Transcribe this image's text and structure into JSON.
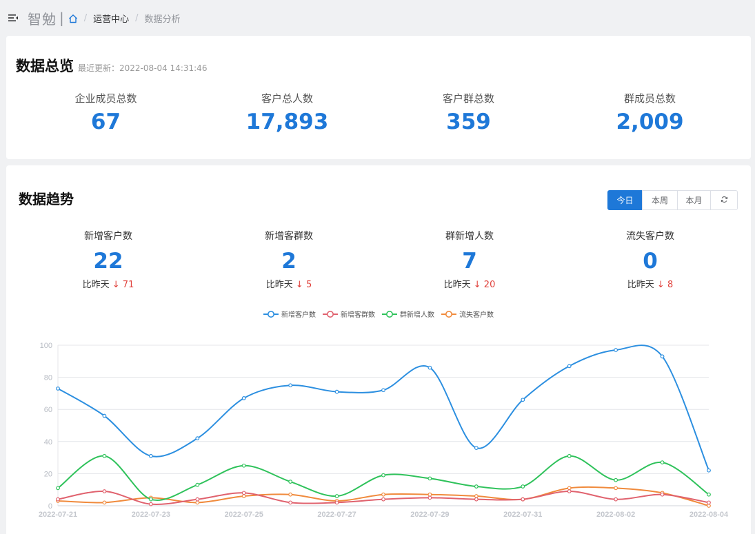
{
  "nav": {
    "brand": "智勉",
    "separator": "|",
    "breadcrumb": [
      {
        "label": "运营中心"
      },
      {
        "label": "数据分析"
      }
    ]
  },
  "overview": {
    "title": "数据总览",
    "update_label": "最近更新：2022-08-04 14:31:46",
    "stats": [
      {
        "label": "企业成员总数",
        "value": "67"
      },
      {
        "label": "客户总人数",
        "value": "17,893"
      },
      {
        "label": "客户群总数",
        "value": "359"
      },
      {
        "label": "群成员总数",
        "value": "2,009"
      }
    ]
  },
  "trend": {
    "title": "数据趋势",
    "periods": [
      "今日",
      "本周",
      "本月"
    ],
    "refresh_icon": "refresh-icon",
    "stats": [
      {
        "label": "新增客户数",
        "value": "22",
        "compare_label": "比昨天",
        "compare_value": "↓ 71"
      },
      {
        "label": "新增客群数",
        "value": "2",
        "compare_label": "比昨天",
        "compare_value": "↓ 5"
      },
      {
        "label": "群新增人数",
        "value": "7",
        "compare_label": "比昨天",
        "compare_value": "↓ 20"
      },
      {
        "label": "流失客户数",
        "value": "0",
        "compare_label": "比昨天",
        "compare_value": "↓ 8"
      }
    ]
  },
  "chart_data": {
    "type": "line",
    "x": [
      "2022-07-21",
      "2022-07-22",
      "2022-07-23",
      "2022-07-24",
      "2022-07-25",
      "2022-07-26",
      "2022-07-27",
      "2022-07-28",
      "2022-07-29",
      "2022-07-30",
      "2022-07-31",
      "2022-08-01",
      "2022-08-02",
      "2022-08-03",
      "2022-08-04"
    ],
    "x_tick_labels": [
      "2022-07-21",
      "2022-07-23",
      "2022-07-25",
      "2022-07-27",
      "2022-07-29",
      "2022-07-31",
      "2022-08-02",
      "2022-08-04"
    ],
    "ylim": [
      0,
      100
    ],
    "y_ticks": [
      0,
      20,
      40,
      60,
      80,
      100
    ],
    "grid": true,
    "legend_position": "top-center",
    "series": [
      {
        "name": "新增客户数",
        "color": "#2c8fe0",
        "values": [
          73,
          56,
          31,
          42,
          67,
          75,
          71,
          72,
          86,
          36,
          66,
          87,
          97,
          93,
          22
        ]
      },
      {
        "name": "新增客群数",
        "color": "#e0626e",
        "values": [
          4,
          9,
          1,
          4,
          8,
          2,
          2,
          4,
          5,
          4,
          4,
          9,
          4,
          7,
          2
        ]
      },
      {
        "name": "群新增人数",
        "color": "#2fc25b",
        "values": [
          11,
          31,
          4,
          13,
          25,
          15,
          6,
          19,
          17,
          12,
          12,
          31,
          16,
          27,
          7
        ]
      },
      {
        "name": "流失客户数",
        "color": "#f08a3c",
        "values": [
          3,
          2,
          5,
          2,
          6,
          7,
          3,
          7,
          7,
          6,
          4,
          11,
          11,
          8,
          0
        ]
      }
    ]
  }
}
